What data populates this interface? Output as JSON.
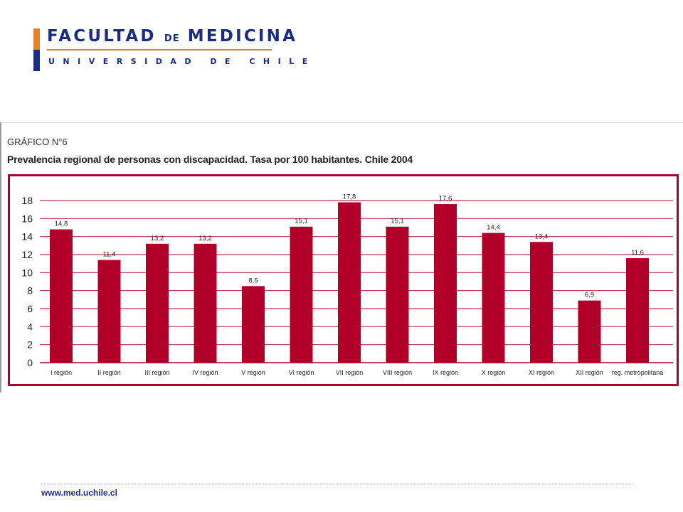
{
  "header": {
    "logo_line1_a": "FACULTAD",
    "logo_line1_de": "DE",
    "logo_line1_b": "MEDICINA",
    "logo_line2": "UNIVERSIDAD DE CHILE"
  },
  "figure": {
    "label": "GRÁFICO N°6",
    "title": "Prevalencia regional de personas con discapacidad. Tasa por 100 habitantes. Chile 2004"
  },
  "footer": {
    "url": "www.med.uchile.cl"
  },
  "colors": {
    "bar": "#b0002a",
    "brand_blue": "#1b2c85",
    "brand_orange": "#e8801f"
  },
  "chart_data": {
    "type": "bar",
    "title": "Prevalencia regional de personas con discapacidad. Tasa por 100 habitantes. Chile 2004",
    "categories": [
      "I región",
      "II región",
      "III región",
      "IV región",
      "V región",
      "VI región",
      "VII región",
      "VIII región",
      "IX región",
      "X región",
      "XI región",
      "XII región",
      "reg. metropolitana"
    ],
    "values": [
      14.8,
      11.4,
      13.2,
      13.2,
      8.5,
      15.1,
      17.8,
      15.1,
      17.6,
      14.4,
      13.4,
      6.9,
      11.6
    ],
    "value_labels": [
      "14,8",
      "11,4",
      "13,2",
      "13,2",
      "8,5",
      "15,1",
      "17,8",
      "15,1",
      "17,6",
      "14,4",
      "13,4",
      "6,9",
      "11,6"
    ],
    "yticks": [
      0,
      2,
      4,
      6,
      8,
      10,
      12,
      14,
      16,
      18
    ],
    "ylim": [
      0,
      18
    ],
    "grid": true,
    "xlabel": "",
    "ylabel": ""
  }
}
